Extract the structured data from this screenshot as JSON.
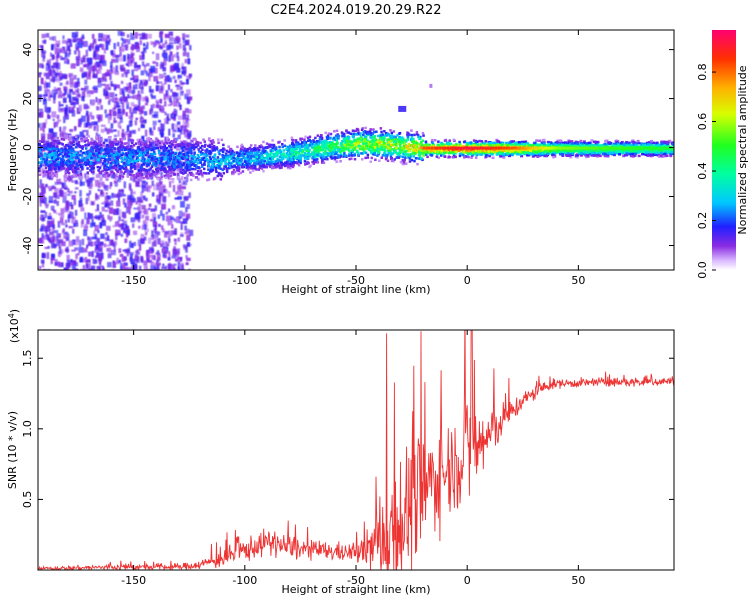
{
  "title": "C2E4.2024.019.20.29.R22",
  "chart_data": [
    {
      "type": "heatmap",
      "xlabel": "Height of straight line (km)",
      "ylabel": "Frequency (Hz)",
      "xlim": [
        -193,
        93
      ],
      "ylim": [
        -50,
        48
      ],
      "xticks": [
        -150,
        -100,
        -50,
        0,
        50
      ],
      "yticks": [
        40,
        20,
        0,
        -20,
        -40
      ],
      "colorbar": {
        "label": "Normalized spectral amplitude",
        "range": [
          0.0,
          0.97
        ],
        "ticks": [
          0.0,
          0.2,
          0.4,
          0.6,
          0.8
        ]
      },
      "ridge": {
        "x": [
          -193,
          -150,
          -120,
          -110,
          -100,
          -80,
          -60,
          -50,
          -40,
          -30,
          -20,
          -10,
          0,
          10,
          20,
          40,
          60,
          93
        ],
        "y": [
          -3,
          -4,
          -4,
          -5,
          -4,
          -2,
          1,
          2,
          2,
          1,
          0,
          0,
          0,
          0,
          0,
          0,
          0,
          0
        ],
        "amplitude": [
          0.3,
          0.3,
          0.3,
          0.35,
          0.35,
          0.45,
          0.6,
          0.7,
          0.75,
          0.75,
          0.85,
          0.9,
          0.95,
          0.9,
          0.85,
          0.6,
          0.55,
          0.5
        ]
      },
      "noise_region_x": [
        -193,
        -125
      ]
    },
    {
      "type": "line",
      "xlabel": "Height of straight line (km)",
      "ylabel": "SNR (10 * v/v)",
      "y_scale_label": "(x10",
      "y_scale_exponent": "4",
      "y_scale_suffix": ")",
      "xlim": [
        -193,
        93
      ],
      "ylim": [
        0,
        1.7
      ],
      "xticks": [
        -150,
        -100,
        -50,
        0,
        50
      ],
      "yticks": [
        0.5,
        1.0,
        1.5
      ],
      "ytick_labels": [
        "0.5",
        "1.0",
        "1.5"
      ],
      "series": [
        {
          "name": "SNR",
          "color": "#ee3333",
          "x": [
            -193,
            -160,
            -130,
            -120,
            -110,
            -100,
            -90,
            -80,
            -70,
            -60,
            -50,
            -45,
            -40,
            -35,
            -30,
            -25,
            -20,
            -15,
            -10,
            -5,
            0,
            5,
            10,
            15,
            20,
            25,
            30,
            35,
            40,
            60,
            80,
            93
          ],
          "y": [
            0.01,
            0.02,
            0.02,
            0.04,
            0.08,
            0.14,
            0.2,
            0.16,
            0.14,
            0.13,
            0.12,
            0.14,
            0.2,
            0.28,
            0.35,
            0.45,
            0.55,
            0.65,
            0.7,
            0.78,
            0.82,
            0.88,
            0.95,
            1.05,
            1.12,
            1.2,
            1.25,
            1.3,
            1.32,
            1.33,
            1.33,
            1.34
          ],
          "spread": [
            0.01,
            0.02,
            0.02,
            0.03,
            0.06,
            0.08,
            0.08,
            0.08,
            0.06,
            0.06,
            0.06,
            0.12,
            0.3,
            0.45,
            0.5,
            0.45,
            0.4,
            0.35,
            0.3,
            0.3,
            0.4,
            0.3,
            0.2,
            0.12,
            0.08,
            0.06,
            0.05,
            0.04,
            0.03,
            0.03,
            0.03,
            0.03
          ]
        }
      ]
    }
  ],
  "colors": {
    "axis": "#000000",
    "snr_line": "#ee3333"
  }
}
